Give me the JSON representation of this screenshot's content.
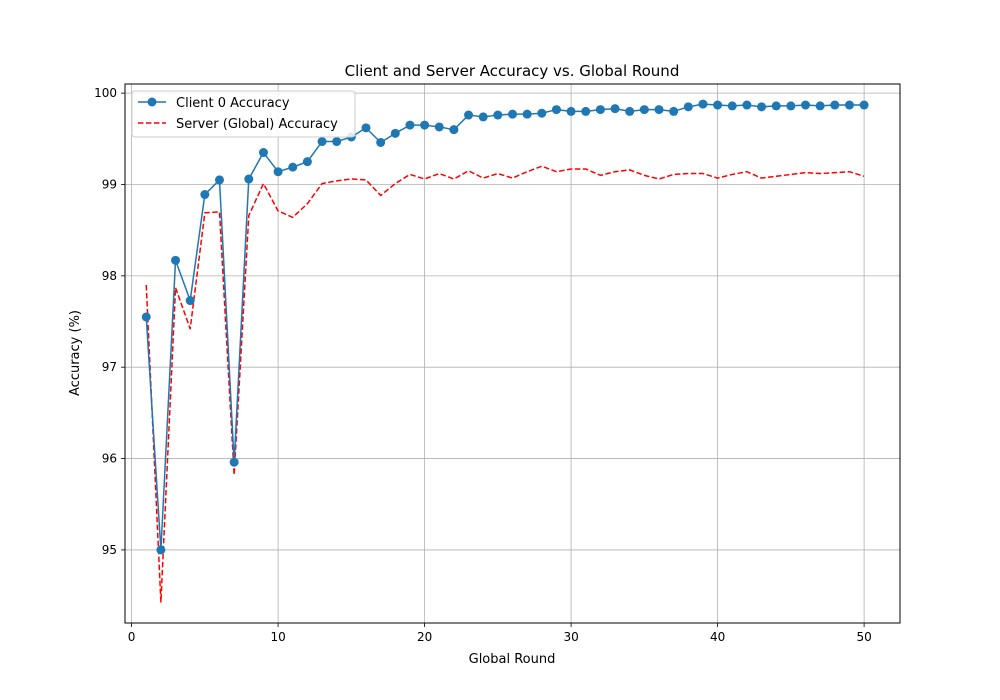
{
  "chart_data": {
    "type": "line",
    "title": "Client and Server Accuracy vs. Global Round",
    "xlabel": "Global Round",
    "ylabel": "Accuracy (%)",
    "xlim": [
      -0.45,
      52.45
    ],
    "ylim": [
      94.2,
      100.1
    ],
    "xticks": [
      0,
      10,
      20,
      30,
      40,
      50
    ],
    "yticks": [
      95,
      96,
      97,
      98,
      99,
      100
    ],
    "grid": true,
    "legend_position": "upper-left",
    "series": [
      {
        "name": "Client 0 Accuracy",
        "color": "#1f77b4",
        "style": "solid",
        "marker": "circle",
        "x": [
          1,
          2,
          3,
          4,
          5,
          6,
          7,
          8,
          9,
          10,
          11,
          12,
          13,
          14,
          15,
          16,
          17,
          18,
          19,
          20,
          21,
          22,
          23,
          24,
          25,
          26,
          27,
          28,
          29,
          30,
          31,
          32,
          33,
          34,
          35,
          36,
          37,
          38,
          39,
          40,
          41,
          42,
          43,
          44,
          45,
          46,
          47,
          48,
          49,
          50
        ],
        "values": [
          97.55,
          95.0,
          98.17,
          97.73,
          98.89,
          99.05,
          95.96,
          99.06,
          99.35,
          99.14,
          99.19,
          99.25,
          99.47,
          99.47,
          99.52,
          99.62,
          99.46,
          99.56,
          99.65,
          99.65,
          99.63,
          99.6,
          99.76,
          99.74,
          99.76,
          99.77,
          99.77,
          99.78,
          99.82,
          99.8,
          99.8,
          99.82,
          99.83,
          99.8,
          99.82,
          99.82,
          99.8,
          99.85,
          99.88,
          99.87,
          99.86,
          99.87,
          99.85,
          99.86,
          99.86,
          99.87,
          99.86,
          99.87,
          99.87,
          99.87
        ]
      },
      {
        "name": "Server (Global) Accuracy",
        "color": "#ff0000",
        "style": "dashed",
        "marker": "none",
        "x": [
          1,
          2,
          3,
          4,
          5,
          6,
          7,
          8,
          9,
          10,
          11,
          12,
          13,
          14,
          15,
          16,
          17,
          18,
          19,
          20,
          21,
          22,
          23,
          24,
          25,
          26,
          27,
          28,
          29,
          30,
          31,
          32,
          33,
          34,
          35,
          36,
          37,
          38,
          39,
          40,
          41,
          42,
          43,
          44,
          45,
          46,
          47,
          48,
          49,
          50
        ],
        "values": [
          97.9,
          94.43,
          97.87,
          97.42,
          98.69,
          98.7,
          95.82,
          98.66,
          99.01,
          98.71,
          98.64,
          98.79,
          99.01,
          99.04,
          99.06,
          99.05,
          98.88,
          99.01,
          99.11,
          99.06,
          99.12,
          99.06,
          99.15,
          99.07,
          99.12,
          99.07,
          99.14,
          99.2,
          99.14,
          99.17,
          99.17,
          99.1,
          99.14,
          99.16,
          99.1,
          99.06,
          99.11,
          99.12,
          99.12,
          99.07,
          99.11,
          99.14,
          99.07,
          99.09,
          99.11,
          99.13,
          99.12,
          99.13,
          99.14,
          99.09
        ]
      }
    ]
  }
}
